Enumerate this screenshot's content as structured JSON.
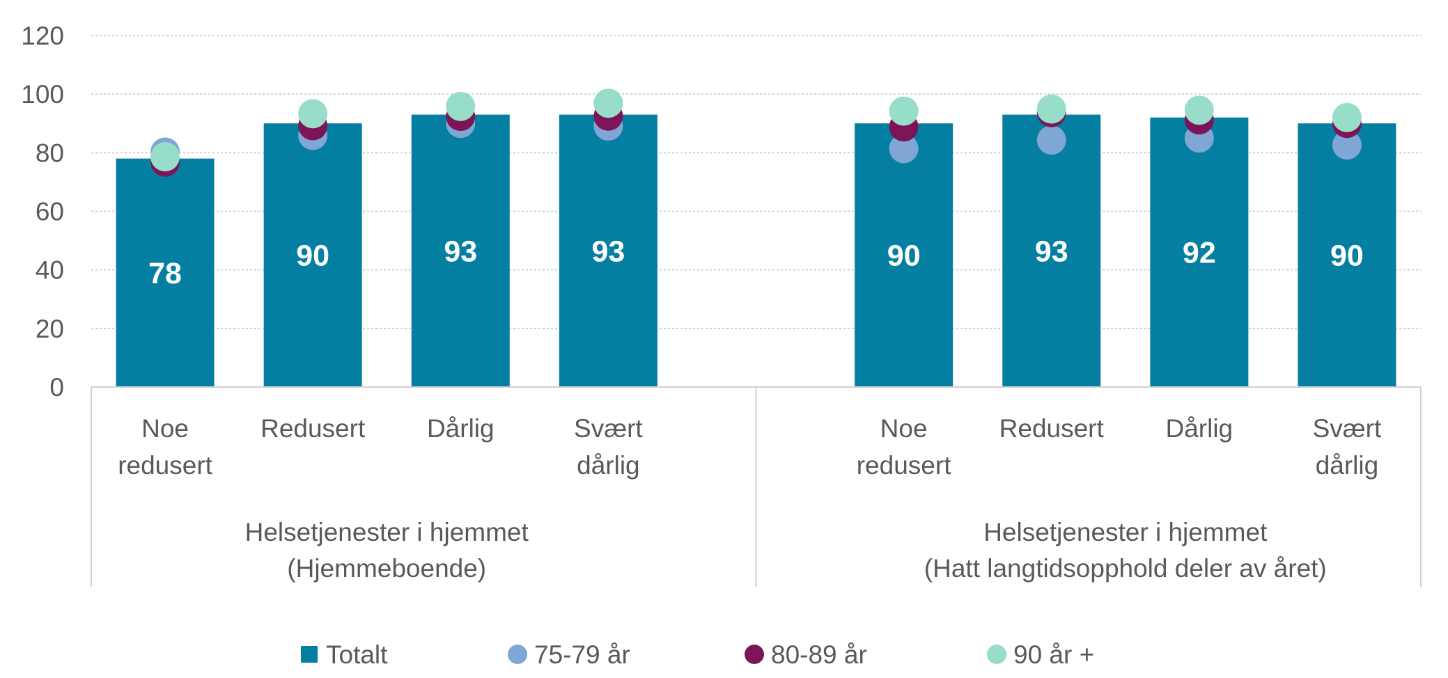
{
  "chart_data": {
    "type": "bar",
    "title": "",
    "xlabel": "",
    "ylabel": "",
    "ylim": [
      0,
      120
    ],
    "yticks": [
      "0",
      "20",
      "40",
      "60",
      "80",
      "100",
      "120"
    ],
    "grid": true,
    "legend_position": "bottom",
    "groups": [
      {
        "label_line1": "Helsetjenester i hjemmet",
        "label_line2": "(Hjemmeboende)",
        "categories": [
          [
            "Noe",
            "redusert"
          ],
          [
            "Redusert",
            ""
          ],
          [
            "Dårlig",
            ""
          ],
          [
            "Svært",
            "dårlig"
          ]
        ]
      },
      {
        "label_line1": "Helsetjenester i hjemmet",
        "label_line2": "(Hatt langtidsopphold deler av året)",
        "categories": [
          [
            "Noe",
            "redusert"
          ],
          [
            "Redusert",
            ""
          ],
          [
            "Dårlig",
            ""
          ],
          [
            "Svært",
            "dårlig"
          ]
        ]
      }
    ],
    "series": [
      {
        "name": "Totalt",
        "kind": "bar",
        "color": "#047FA2",
        "values": [
          78,
          90,
          93,
          93,
          90,
          93,
          92,
          90
        ]
      },
      {
        "name": "75-79 år",
        "kind": "dot",
        "color": "#7FA6D4",
        "values": [
          80.2,
          85.9,
          90.0,
          89.1,
          81.4,
          84.3,
          85.0,
          82.6
        ]
      },
      {
        "name": "80-89 år",
        "kind": "dot",
        "color": "#7B1557",
        "values": [
          76.8,
          89.2,
          92.4,
          92.5,
          88.8,
          93.7,
          91.2,
          90.0
        ]
      },
      {
        "name": "90 år +",
        "kind": "dot",
        "color": "#97DDCA",
        "values": [
          78.6,
          93.3,
          95.8,
          96.9,
          94.2,
          94.9,
          94.5,
          92.0
        ]
      }
    ],
    "bar_labels": [
      "78",
      "90",
      "93",
      "93",
      "90",
      "93",
      "92",
      "90"
    ]
  }
}
